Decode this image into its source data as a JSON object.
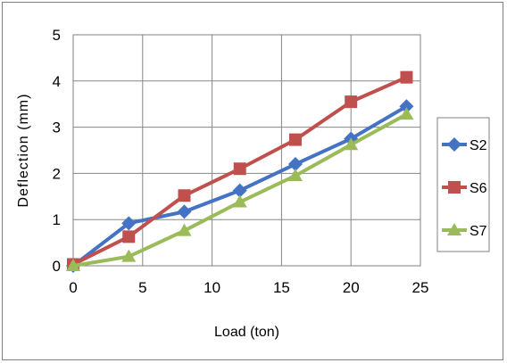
{
  "chart_data": {
    "type": "line",
    "xlabel": "Load (ton)",
    "ylabel": "Deflection (mm)",
    "xlim": [
      0,
      25
    ],
    "ylim": [
      0,
      5
    ],
    "xticks": [
      "0",
      "5",
      "10",
      "15",
      "20",
      "25"
    ],
    "yticks": [
      "0",
      "1",
      "2",
      "3",
      "4",
      "5"
    ],
    "grid": true,
    "legend_position": "right",
    "x": [
      0,
      4,
      8,
      12,
      16,
      20,
      24
    ],
    "series": [
      {
        "name": "S2",
        "color": "#4472C4",
        "marker": "diamond",
        "values": [
          0,
          0.92,
          1.17,
          1.63,
          2.2,
          2.75,
          3.45
        ]
      },
      {
        "name": "S6",
        "color": "#C0504D",
        "marker": "square",
        "values": [
          0.03,
          0.63,
          1.52,
          2.1,
          2.73,
          3.55,
          4.08
        ]
      },
      {
        "name": "S7",
        "color": "#9BBB59",
        "marker": "triangle",
        "values": [
          0,
          0.2,
          0.76,
          1.38,
          1.95,
          2.62,
          3.28
        ]
      }
    ]
  }
}
